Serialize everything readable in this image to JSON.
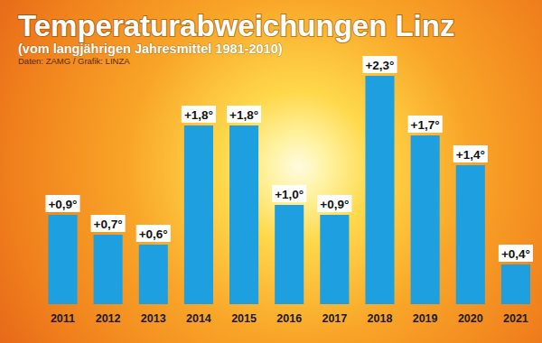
{
  "chart_data": {
    "type": "bar",
    "title": "Temperaturabweichungen Linz",
    "subtitle": "(vom langjährigen Jahresmittel 1981-2010)",
    "source": "Daten: ZAMG / Grafik: LINZA",
    "categories": [
      "2011",
      "2012",
      "2013",
      "2014",
      "2015",
      "2016",
      "2017",
      "2018",
      "2019",
      "2020",
      "2021"
    ],
    "values": [
      0.9,
      0.7,
      0.6,
      1.8,
      1.8,
      1.0,
      0.9,
      2.3,
      1.7,
      1.4,
      0.4
    ],
    "value_labels": [
      "+0,9°",
      "+0,7°",
      "+0,6°",
      "+1,8°",
      "+1,8°",
      "+1,0°",
      "+0,9°",
      "+2,3°",
      "+1,7°",
      "+1,4°",
      "+0,4°"
    ],
    "color": "#1e9fe0",
    "ylim": [
      0,
      2.5
    ],
    "grid": false,
    "data_labels": true,
    "tick_labels": "x"
  }
}
